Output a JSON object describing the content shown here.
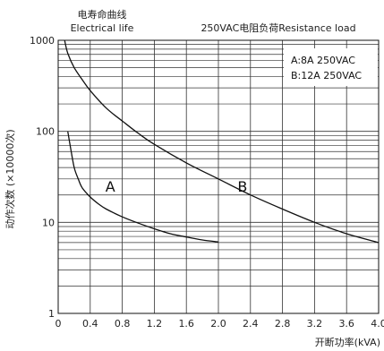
{
  "chart_data": {
    "type": "line",
    "title_cn": "电寿命曲线",
    "title_en": "Electrical life",
    "subtitle": "250VAC电阻负荷Resistance load",
    "xlabel": "开断功率(kVA)",
    "ylabel": "动作次数 (×10000次)",
    "x_scale": "linear",
    "y_scale": "log",
    "xlim": [
      0,
      4.0
    ],
    "ylim": [
      1,
      1000
    ],
    "x_ticks": [
      "0",
      "0.4",
      "0.8",
      "1.2",
      "1.6",
      "2.0",
      "2.4",
      "2.8",
      "3.2",
      "3.6",
      "4.0"
    ],
    "y_ticks": [
      "1",
      "10",
      "100",
      "1000"
    ],
    "grid": true,
    "legend_entries": [
      "A:8A 250VAC",
      "B:12A 250VAC"
    ],
    "legend_position": "top-right",
    "series": [
      {
        "name": "A",
        "x": [
          0.12,
          0.16,
          0.2,
          0.25,
          0.3,
          0.4,
          0.5,
          0.6,
          0.8,
          1.0,
          1.2,
          1.4,
          1.6,
          1.8,
          2.0
        ],
        "values": [
          100,
          62,
          40,
          30,
          24,
          19,
          16,
          14,
          11.5,
          9.8,
          8.5,
          7.5,
          6.9,
          6.4,
          6.1
        ]
      },
      {
        "name": "B",
        "x": [
          0.08,
          0.12,
          0.2,
          0.3,
          0.4,
          0.6,
          0.8,
          1.0,
          1.2,
          1.6,
          2.0,
          2.4,
          2.8,
          3.2,
          3.6,
          4.0
        ],
        "values": [
          1000,
          720,
          500,
          370,
          280,
          180,
          130,
          95,
          72,
          45,
          30,
          20,
          14,
          10,
          7.5,
          6
        ]
      }
    ]
  }
}
